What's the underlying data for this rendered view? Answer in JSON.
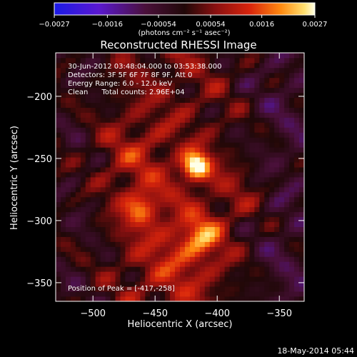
{
  "chart_data": {
    "type": "heatmap",
    "title": "Reconstructed RHESSI Image",
    "xlabel": "Heliocentric X (arcsec)",
    "ylabel": "Heliocentric Y (arcsec)",
    "xlim": [
      -530,
      -330
    ],
    "ylim": [
      -365,
      -165
    ],
    "x_ticks": [
      -500,
      -450,
      -400,
      -350
    ],
    "x_tick_labels": [
      "−500",
      "−450",
      "−400",
      "−350"
    ],
    "y_ticks": [
      -350,
      -300,
      -250,
      -200
    ],
    "y_tick_labels": [
      "−350",
      "−300",
      "−250",
      "−200"
    ],
    "colorbar": {
      "range": [
        -0.0027,
        0.0027
      ],
      "ticks": [
        -0.0027,
        -0.0016,
        -0.00054,
        0.00054,
        0.0016,
        0.0027
      ],
      "tick_labels": [
        "−0.0027",
        "−0.0016",
        "−0.00054",
        "0.00054",
        "0.0016",
        "0.0027"
      ],
      "unit_label": "(photons cm⁻² s⁻¹ asec⁻²)"
    },
    "annotations": [
      "30-Jun-2012 03:48:04.000 to 03:53:38.000",
      "Detectors: 3F 5F 6F 7F 8F 9F, Att 0",
      "Energy Range: 6.0 - 12.0 keV",
      "Clean      Total counts: 2.96E+04"
    ],
    "peak_label": "Position of Peak = [-417,-258]",
    "sources": [
      {
        "x": -417,
        "y": -256,
        "sigma": 8,
        "amp": 0.0027
      },
      {
        "x": -462,
        "y": -290,
        "sigma": 10,
        "amp": 0.0014
      },
      {
        "x": -413,
        "y": -313,
        "sigma": 11,
        "amp": 0.0013
      },
      {
        "x": -470,
        "y": -250,
        "sigma": 22,
        "amp": 0.0006
      },
      {
        "x": -430,
        "y": -330,
        "sigma": 25,
        "amp": 0.0007
      },
      {
        "x": -380,
        "y": -280,
        "sigma": 18,
        "amp": 0.0005
      }
    ]
  },
  "footer": {
    "timestamp": "18-May-2014 05:44"
  }
}
